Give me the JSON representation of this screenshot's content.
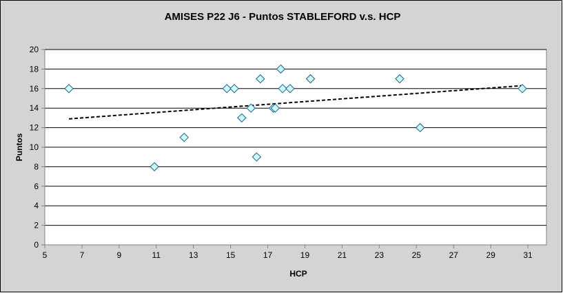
{
  "chart_data": {
    "type": "scatter",
    "title": "AMISES P22 J6 - Puntos STABLEFORD v.s. HCP",
    "xlabel": "HCP",
    "ylabel": "Puntos",
    "xlim": [
      5,
      32
    ],
    "ylim": [
      0,
      20
    ],
    "xticks": [
      5,
      7,
      9,
      11,
      13,
      15,
      17,
      19,
      21,
      23,
      25,
      27,
      29,
      31
    ],
    "yticks": [
      0,
      2,
      4,
      6,
      8,
      10,
      12,
      14,
      16,
      18,
      20
    ],
    "grid": "horizontal",
    "legend": "none",
    "marker_fill": "#ccffff",
    "marker_stroke": "#1f5a8a",
    "plot_background": "#ffffff",
    "outer_background": "#d4d4d4",
    "series": [
      {
        "marker": "diamond",
        "points": [
          {
            "x": 6.3,
            "y": 16
          },
          {
            "x": 10.9,
            "y": 8
          },
          {
            "x": 12.5,
            "y": 11
          },
          {
            "x": 14.8,
            "y": 16
          },
          {
            "x": 15.2,
            "y": 16
          },
          {
            "x": 15.6,
            "y": 13
          },
          {
            "x": 16.1,
            "y": 14
          },
          {
            "x": 16.4,
            "y": 9
          },
          {
            "x": 16.6,
            "y": 17
          },
          {
            "x": 17.3,
            "y": 14
          },
          {
            "x": 17.4,
            "y": 14
          },
          {
            "x": 17.7,
            "y": 18
          },
          {
            "x": 17.8,
            "y": 16
          },
          {
            "x": 18.2,
            "y": 16
          },
          {
            "x": 19.3,
            "y": 17
          },
          {
            "x": 24.1,
            "y": 17
          },
          {
            "x": 25.2,
            "y": 12
          },
          {
            "x": 30.7,
            "y": 16
          }
        ]
      }
    ],
    "trendline": {
      "type": "linear",
      "style": "dashed",
      "x": [
        6.3,
        30.7
      ],
      "y": [
        12.9,
        16.3
      ]
    }
  }
}
